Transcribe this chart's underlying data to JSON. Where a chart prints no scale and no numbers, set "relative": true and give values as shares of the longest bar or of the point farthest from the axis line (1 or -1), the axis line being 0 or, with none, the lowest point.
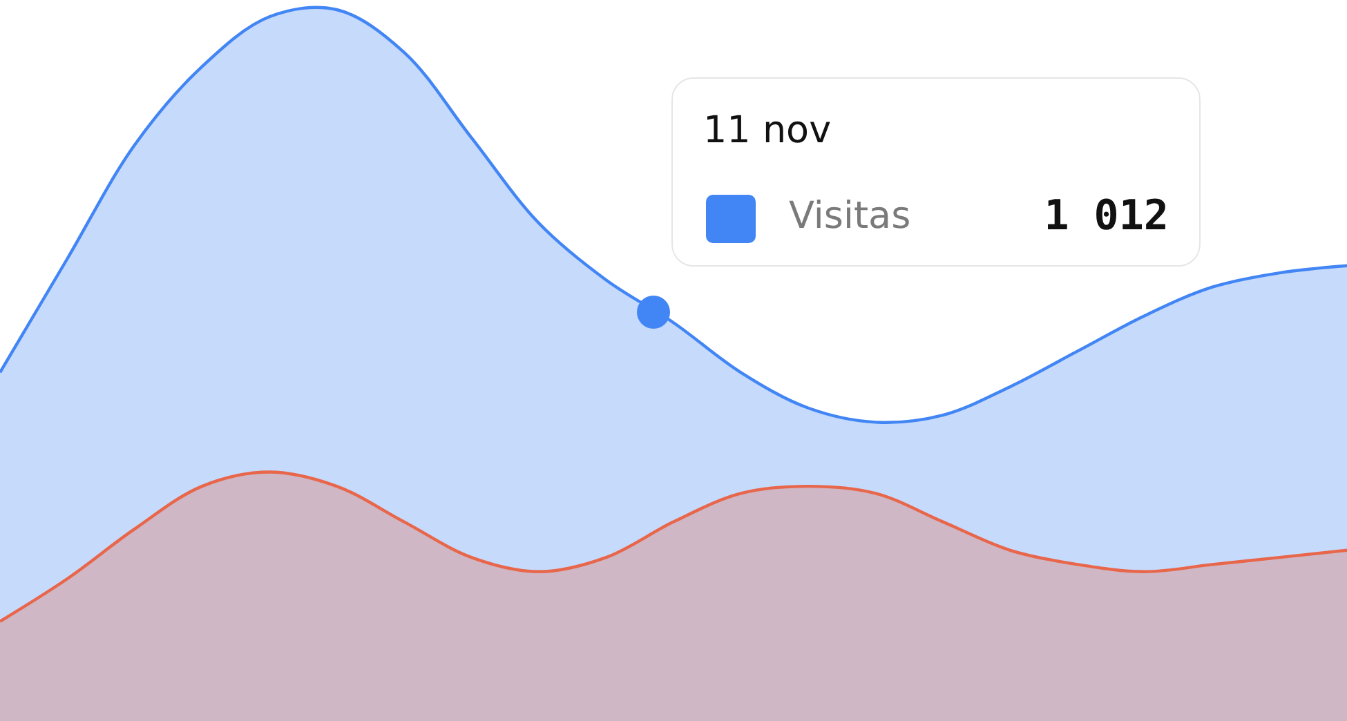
{
  "chart_data": {
    "type": "area",
    "relative": true,
    "legend": "top right",
    "categories": [
      null,
      null,
      null,
      null,
      null,
      null,
      null,
      null,
      null,
      null,
      null,
      null,
      null,
      null,
      null,
      null,
      null,
      null,
      null,
      null,
      null
    ],
    "series": [
      {
        "name": "Visitas",
        "color": "#4285f4",
        "values": [
          0.49,
          0.65,
          0.81,
          0.92,
          0.99,
          1.0,
          0.94,
          0.82,
          0.7,
          0.62,
          0.56,
          0.49,
          0.44,
          0.42,
          0.43,
          0.47,
          0.52,
          0.57,
          0.61,
          0.63,
          0.64
        ]
      },
      {
        "color": "#e8664a",
        "values": [
          0.14,
          0.2,
          0.27,
          0.33,
          0.35,
          0.33,
          0.28,
          0.23,
          0.21,
          0.23,
          0.28,
          0.32,
          0.33,
          0.32,
          0.28,
          0.24,
          0.22,
          0.21,
          0.22,
          0.23,
          0.24
        ]
      }
    ],
    "annotations": [
      "11 nov",
      "1 012"
    ]
  }
}
